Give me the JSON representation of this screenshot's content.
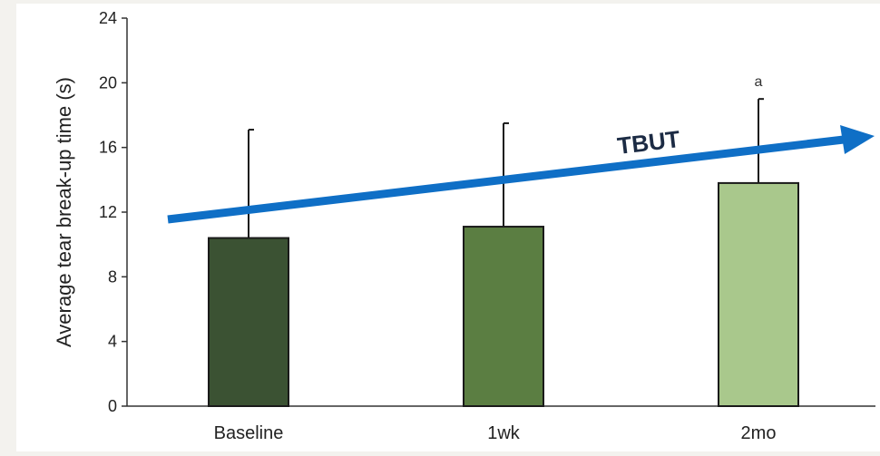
{
  "chart_data": {
    "type": "bar",
    "categories": [
      "Baseline",
      "1wk",
      "2mo"
    ],
    "values": [
      10.4,
      11.1,
      13.8
    ],
    "error_upper": [
      17.1,
      17.5,
      19.0
    ],
    "bar_colors": [
      "#3b5233",
      "#5b7e42",
      "#a9c88c"
    ],
    "significance_labels": [
      "",
      "",
      "a"
    ],
    "ylabel": "Average tear break-up time (s)",
    "xlabel": "",
    "ylim": [
      0,
      24
    ],
    "yticks": [
      0,
      4,
      8,
      12,
      16,
      20,
      24
    ],
    "grid": false,
    "annotation": {
      "text": "TBUT",
      "color": "#0f6fc6",
      "kind": "trend-arrow"
    }
  }
}
